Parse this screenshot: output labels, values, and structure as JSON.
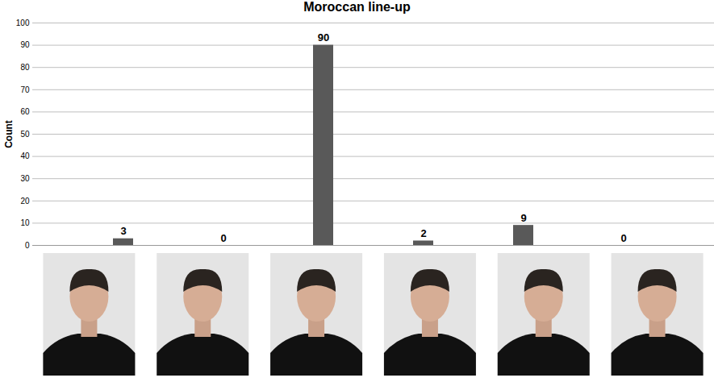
{
  "chart_data": {
    "type": "bar",
    "title": "Moroccan line-up",
    "y_label": "Count",
    "categories": [
      null,
      null,
      null,
      null,
      null,
      null
    ],
    "values": [
      3,
      0,
      90,
      2,
      9,
      0
    ],
    "color": "#595959",
    "ylim": [
      0,
      100
    ],
    "yticks": [
      0,
      10,
      20,
      30,
      40,
      50,
      60,
      70,
      80,
      90,
      100
    ],
    "grid": true,
    "data_labels": true,
    "tick_labels": "y"
  }
}
